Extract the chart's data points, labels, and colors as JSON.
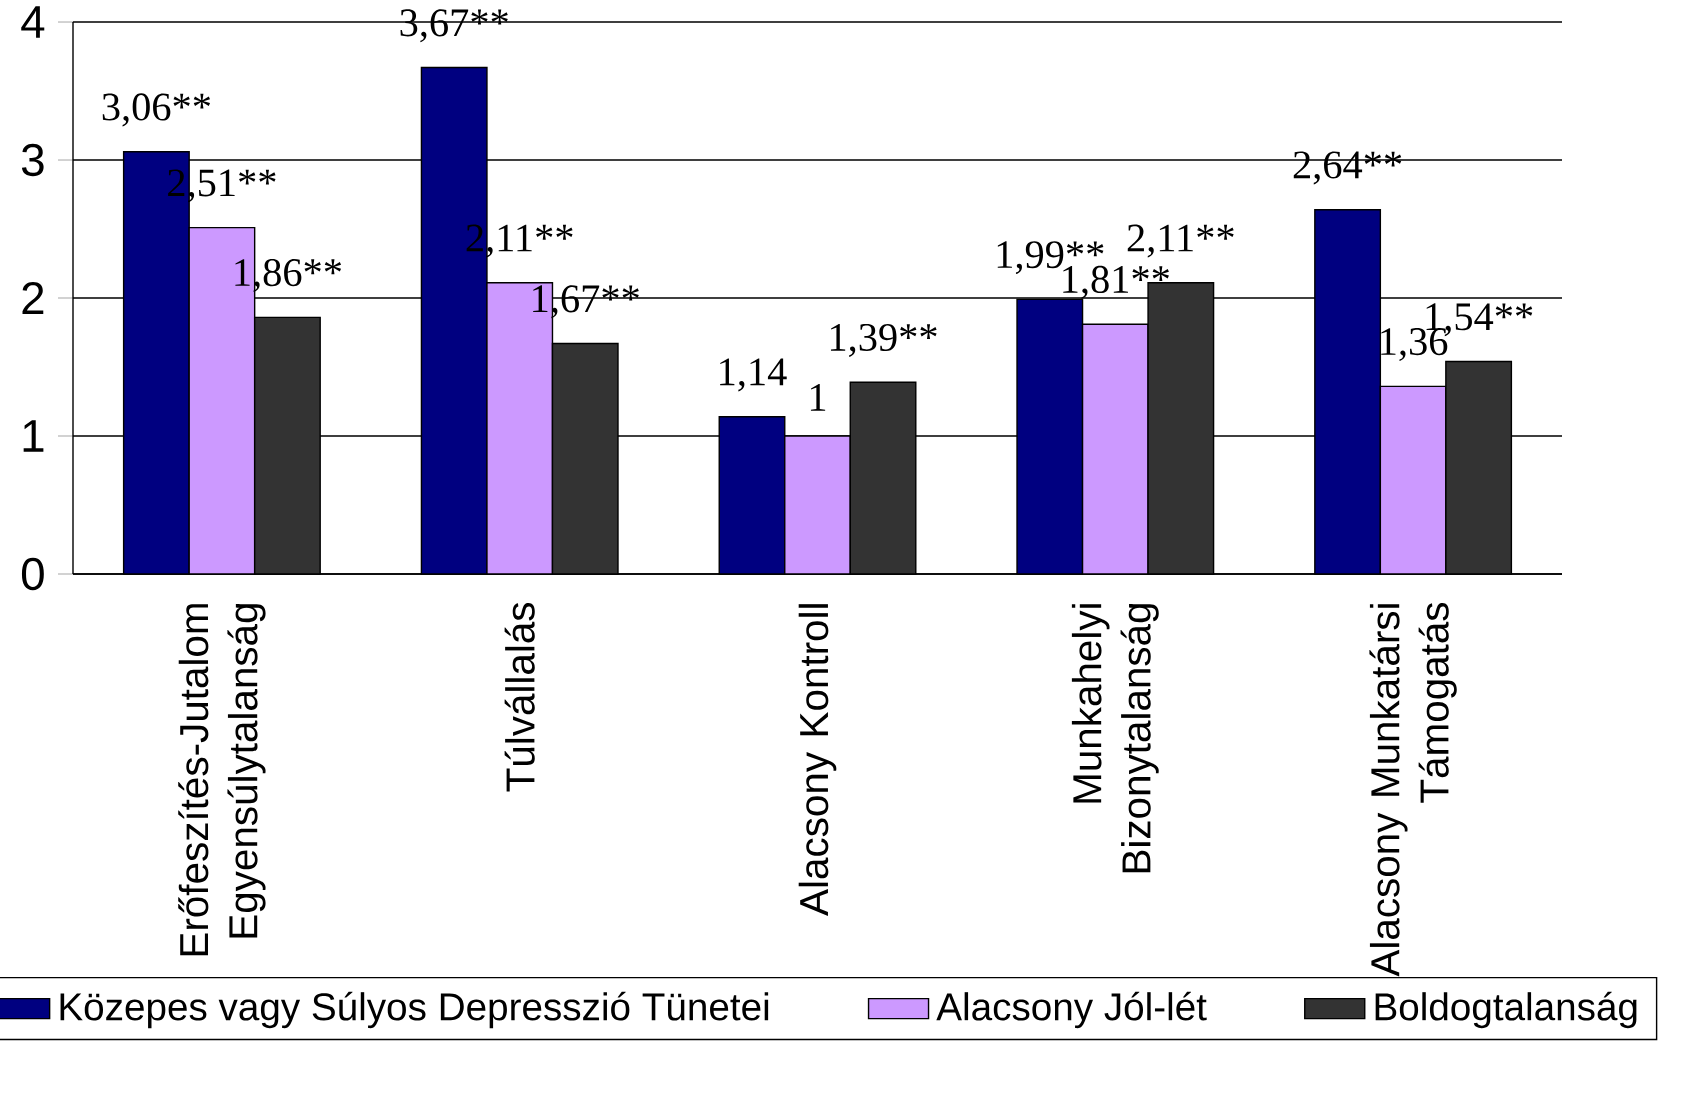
{
  "chart_data": {
    "type": "bar",
    "categories": [
      "Erőfeszítés-Jutalom Egyensúlytalanság",
      "Túlvállalás",
      "Alacsony Kontroll",
      "Munkahelyi Bizonytalanság",
      "Alacsony Munkatársi Támogatás"
    ],
    "series": [
      {
        "name": "Közepes vagy Súlyos Depresszió Tünetei",
        "color": "#000080",
        "values": [
          3.06,
          3.67,
          1.14,
          1.99,
          2.64
        ],
        "value_labels": [
          "3,06**",
          "3,67**",
          "1,14",
          "1,99**",
          "2,64**"
        ]
      },
      {
        "name": "Alacsony Jól-lét",
        "color": "#cc99ff",
        "values": [
          2.51,
          2.11,
          1,
          1.81,
          1.36
        ],
        "value_labels": [
          "2,51**",
          "2,11**",
          "1",
          "1,81**",
          "1,36"
        ]
      },
      {
        "name": "Boldogtalanság",
        "color": "#333333",
        "values": [
          1.86,
          1.67,
          1.39,
          2.11,
          1.54
        ],
        "value_labels": [
          "1,86**",
          "1,67**",
          "1,39**",
          "2,11**",
          "1,54**"
        ]
      }
    ],
    "ylim": [
      0,
      4
    ],
    "yticks": [
      0,
      1,
      2,
      3,
      4
    ],
    "grid": "y",
    "legend": "bottom"
  }
}
